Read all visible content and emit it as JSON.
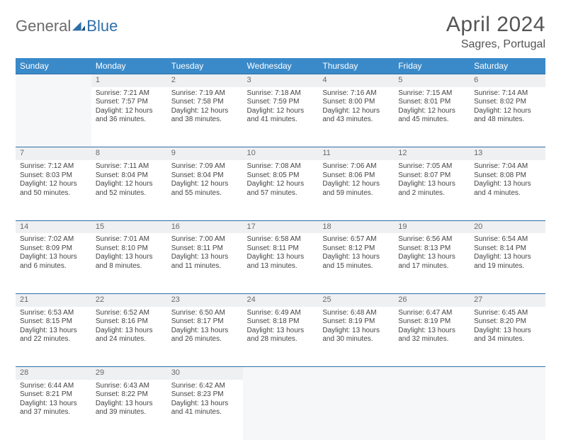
{
  "brand": {
    "part1": "General",
    "part2": "Blue"
  },
  "title": "April 2024",
  "location": "Sagres, Portugal",
  "colors": {
    "header_bg": "#3a8ac9",
    "rule": "#2f6fa8",
    "daynum_bg": "#eef0f2",
    "blank_bg": "#f6f7f8",
    "text": "#444444"
  },
  "weekdays": [
    "Sunday",
    "Monday",
    "Tuesday",
    "Wednesday",
    "Thursday",
    "Friday",
    "Saturday"
  ],
  "weeks": [
    {
      "nums": [
        "",
        "1",
        "2",
        "3",
        "4",
        "5",
        "6"
      ],
      "cells": [
        null,
        {
          "sr": "Sunrise: 7:21 AM",
          "ss": "Sunset: 7:57 PM",
          "dl": "Daylight: 12 hours and 36 minutes."
        },
        {
          "sr": "Sunrise: 7:19 AM",
          "ss": "Sunset: 7:58 PM",
          "dl": "Daylight: 12 hours and 38 minutes."
        },
        {
          "sr": "Sunrise: 7:18 AM",
          "ss": "Sunset: 7:59 PM",
          "dl": "Daylight: 12 hours and 41 minutes."
        },
        {
          "sr": "Sunrise: 7:16 AM",
          "ss": "Sunset: 8:00 PM",
          "dl": "Daylight: 12 hours and 43 minutes."
        },
        {
          "sr": "Sunrise: 7:15 AM",
          "ss": "Sunset: 8:01 PM",
          "dl": "Daylight: 12 hours and 45 minutes."
        },
        {
          "sr": "Sunrise: 7:14 AM",
          "ss": "Sunset: 8:02 PM",
          "dl": "Daylight: 12 hours and 48 minutes."
        }
      ]
    },
    {
      "nums": [
        "7",
        "8",
        "9",
        "10",
        "11",
        "12",
        "13"
      ],
      "cells": [
        {
          "sr": "Sunrise: 7:12 AM",
          "ss": "Sunset: 8:03 PM",
          "dl": "Daylight: 12 hours and 50 minutes."
        },
        {
          "sr": "Sunrise: 7:11 AM",
          "ss": "Sunset: 8:04 PM",
          "dl": "Daylight: 12 hours and 52 minutes."
        },
        {
          "sr": "Sunrise: 7:09 AM",
          "ss": "Sunset: 8:04 PM",
          "dl": "Daylight: 12 hours and 55 minutes."
        },
        {
          "sr": "Sunrise: 7:08 AM",
          "ss": "Sunset: 8:05 PM",
          "dl": "Daylight: 12 hours and 57 minutes."
        },
        {
          "sr": "Sunrise: 7:06 AM",
          "ss": "Sunset: 8:06 PM",
          "dl": "Daylight: 12 hours and 59 minutes."
        },
        {
          "sr": "Sunrise: 7:05 AM",
          "ss": "Sunset: 8:07 PM",
          "dl": "Daylight: 13 hours and 2 minutes."
        },
        {
          "sr": "Sunrise: 7:04 AM",
          "ss": "Sunset: 8:08 PM",
          "dl": "Daylight: 13 hours and 4 minutes."
        }
      ]
    },
    {
      "nums": [
        "14",
        "15",
        "16",
        "17",
        "18",
        "19",
        "20"
      ],
      "cells": [
        {
          "sr": "Sunrise: 7:02 AM",
          "ss": "Sunset: 8:09 PM",
          "dl": "Daylight: 13 hours and 6 minutes."
        },
        {
          "sr": "Sunrise: 7:01 AM",
          "ss": "Sunset: 8:10 PM",
          "dl": "Daylight: 13 hours and 8 minutes."
        },
        {
          "sr": "Sunrise: 7:00 AM",
          "ss": "Sunset: 8:11 PM",
          "dl": "Daylight: 13 hours and 11 minutes."
        },
        {
          "sr": "Sunrise: 6:58 AM",
          "ss": "Sunset: 8:11 PM",
          "dl": "Daylight: 13 hours and 13 minutes."
        },
        {
          "sr": "Sunrise: 6:57 AM",
          "ss": "Sunset: 8:12 PM",
          "dl": "Daylight: 13 hours and 15 minutes."
        },
        {
          "sr": "Sunrise: 6:56 AM",
          "ss": "Sunset: 8:13 PM",
          "dl": "Daylight: 13 hours and 17 minutes."
        },
        {
          "sr": "Sunrise: 6:54 AM",
          "ss": "Sunset: 8:14 PM",
          "dl": "Daylight: 13 hours and 19 minutes."
        }
      ]
    },
    {
      "nums": [
        "21",
        "22",
        "23",
        "24",
        "25",
        "26",
        "27"
      ],
      "cells": [
        {
          "sr": "Sunrise: 6:53 AM",
          "ss": "Sunset: 8:15 PM",
          "dl": "Daylight: 13 hours and 22 minutes."
        },
        {
          "sr": "Sunrise: 6:52 AM",
          "ss": "Sunset: 8:16 PM",
          "dl": "Daylight: 13 hours and 24 minutes."
        },
        {
          "sr": "Sunrise: 6:50 AM",
          "ss": "Sunset: 8:17 PM",
          "dl": "Daylight: 13 hours and 26 minutes."
        },
        {
          "sr": "Sunrise: 6:49 AM",
          "ss": "Sunset: 8:18 PM",
          "dl": "Daylight: 13 hours and 28 minutes."
        },
        {
          "sr": "Sunrise: 6:48 AM",
          "ss": "Sunset: 8:19 PM",
          "dl": "Daylight: 13 hours and 30 minutes."
        },
        {
          "sr": "Sunrise: 6:47 AM",
          "ss": "Sunset: 8:19 PM",
          "dl": "Daylight: 13 hours and 32 minutes."
        },
        {
          "sr": "Sunrise: 6:45 AM",
          "ss": "Sunset: 8:20 PM",
          "dl": "Daylight: 13 hours and 34 minutes."
        }
      ]
    },
    {
      "nums": [
        "28",
        "29",
        "30",
        "",
        "",
        "",
        ""
      ],
      "cells": [
        {
          "sr": "Sunrise: 6:44 AM",
          "ss": "Sunset: 8:21 PM",
          "dl": "Daylight: 13 hours and 37 minutes."
        },
        {
          "sr": "Sunrise: 6:43 AM",
          "ss": "Sunset: 8:22 PM",
          "dl": "Daylight: 13 hours and 39 minutes."
        },
        {
          "sr": "Sunrise: 6:42 AM",
          "ss": "Sunset: 8:23 PM",
          "dl": "Daylight: 13 hours and 41 minutes."
        },
        null,
        null,
        null,
        null
      ]
    }
  ]
}
